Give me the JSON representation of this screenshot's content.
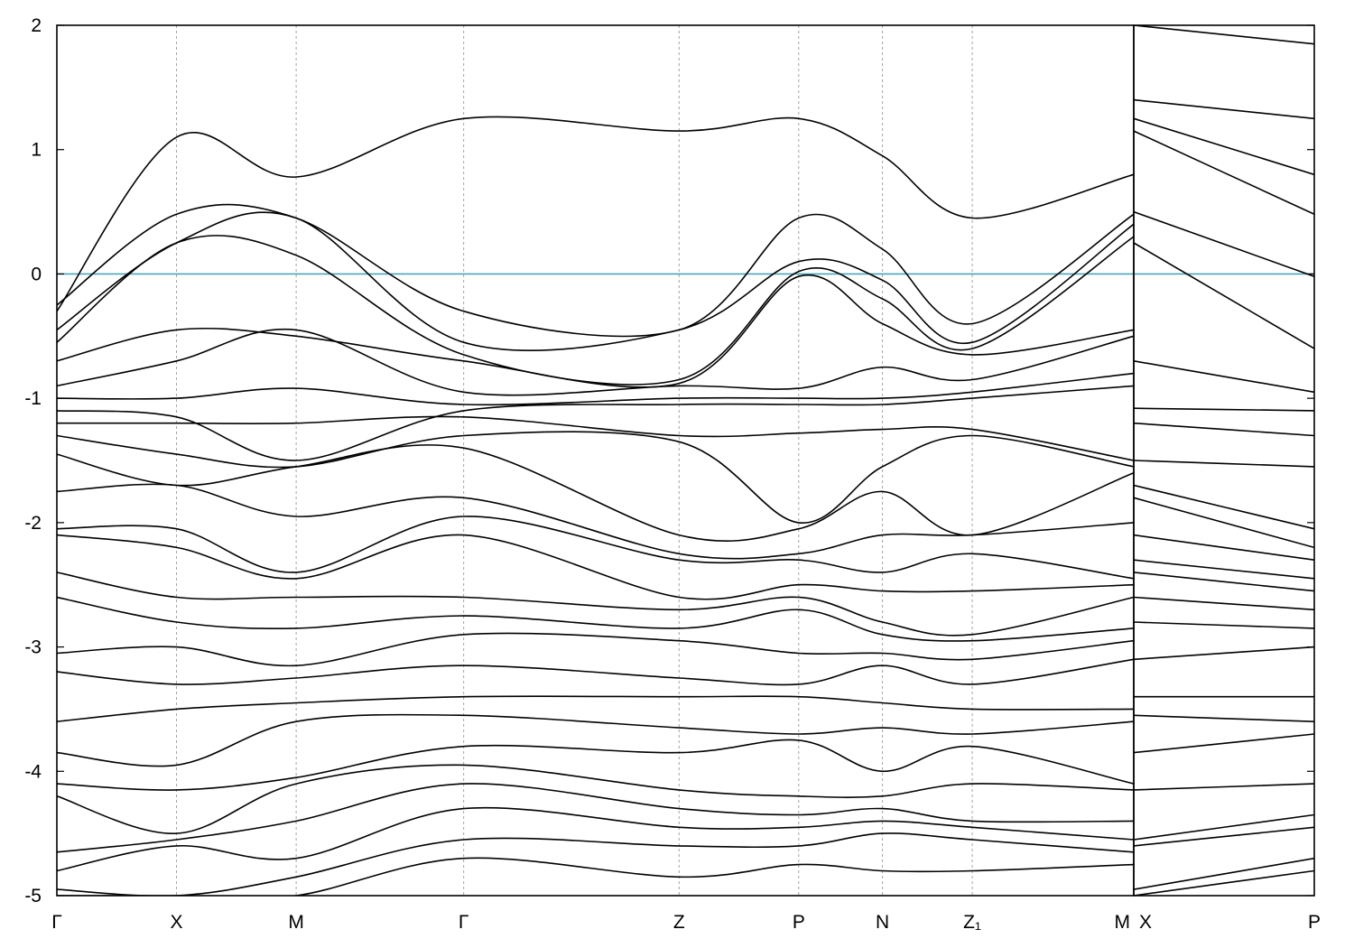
{
  "chart_data": {
    "type": "line",
    "title": "",
    "xlabel": "",
    "ylabel": "",
    "ylim": [
      -5,
      2
    ],
    "yticks": [
      "2",
      "1",
      "0",
      "-1",
      "-2",
      "-3",
      "-4",
      "-5"
    ],
    "grid": "vertical dashed lines at high-symmetry points",
    "fermi_level": 0,
    "fermi_color": "#4aa6b8",
    "line_color": "#000000",
    "segments": [
      {
        "path": [
          "Γ",
          "X",
          "M",
          "Γ",
          "Z",
          "P",
          "N",
          "Z1",
          "M"
        ],
        "x": [
          0,
          1,
          2,
          3.4,
          5.2,
          6.2,
          6.9,
          7.65,
          9
        ],
        "bands": [
          [
            -0.3,
            1.1,
            0.78,
            1.25,
            1.15,
            1.25,
            0.95,
            0.45,
            0.8
          ],
          [
            -0.25,
            0.48,
            0.45,
            -0.3,
            -0.45,
            0.45,
            0.2,
            -0.4,
            0.48
          ],
          [
            -0.45,
            0.25,
            0.45,
            -0.55,
            -0.45,
            0.1,
            -0.05,
            -0.55,
            0.4
          ],
          [
            -0.55,
            0.25,
            0.15,
            -0.65,
            -0.85,
            0.02,
            -0.2,
            -0.6,
            0.3
          ],
          [
            -0.7,
            -0.45,
            -0.5,
            -0.7,
            -0.88,
            -0.02,
            -0.4,
            -0.65,
            -0.45
          ],
          [
            -0.9,
            -0.7,
            -0.45,
            -0.95,
            -0.9,
            -0.92,
            -0.75,
            -0.85,
            -0.5
          ],
          [
            -1.0,
            -1.0,
            -0.92,
            -1.05,
            -1.0,
            -1.0,
            -1.0,
            -0.95,
            -0.8
          ],
          [
            -1.1,
            -1.15,
            -1.5,
            -1.1,
            -1.05,
            -1.05,
            -1.05,
            -1.0,
            -0.9
          ],
          [
            -1.2,
            -1.2,
            -1.2,
            -1.15,
            -1.3,
            -1.28,
            -1.25,
            -1.25,
            -1.5
          ],
          [
            -1.3,
            -1.45,
            -1.55,
            -1.3,
            -1.35,
            -2.0,
            -1.55,
            -1.3,
            -1.55
          ],
          [
            -1.45,
            -1.7,
            -1.55,
            -1.4,
            -2.1,
            -2.05,
            -1.75,
            -2.1,
            -1.6
          ],
          [
            -1.75,
            -1.7,
            -1.95,
            -1.8,
            -2.25,
            -2.25,
            -2.1,
            -2.1,
            -2.0
          ],
          [
            -2.05,
            -2.05,
            -2.4,
            -1.95,
            -2.3,
            -2.3,
            -2.4,
            -2.25,
            -2.45
          ],
          [
            -2.1,
            -2.2,
            -2.45,
            -2.1,
            -2.6,
            -2.5,
            -2.55,
            -2.55,
            -2.5
          ],
          [
            -2.4,
            -2.6,
            -2.6,
            -2.6,
            -2.7,
            -2.6,
            -2.8,
            -2.9,
            -2.6
          ],
          [
            -2.6,
            -2.8,
            -2.85,
            -2.75,
            -2.85,
            -2.7,
            -2.9,
            -2.95,
            -2.85
          ],
          [
            -3.05,
            -3.0,
            -3.15,
            -2.9,
            -2.95,
            -3.05,
            -3.05,
            -3.1,
            -2.95
          ],
          [
            -3.2,
            -3.3,
            -3.25,
            -3.15,
            -3.25,
            -3.3,
            -3.15,
            -3.3,
            -3.1
          ],
          [
            -3.6,
            -3.5,
            -3.45,
            -3.4,
            -3.4,
            -3.4,
            -3.45,
            -3.5,
            -3.5
          ],
          [
            -3.85,
            -3.95,
            -3.6,
            -3.55,
            -3.65,
            -3.7,
            -3.65,
            -3.7,
            -3.6
          ],
          [
            -4.1,
            -4.15,
            -4.05,
            -3.8,
            -3.85,
            -3.75,
            -4.0,
            -3.8,
            -4.1
          ],
          [
            -4.2,
            -4.5,
            -4.1,
            -3.95,
            -4.15,
            -4.2,
            -4.2,
            -4.1,
            -4.15
          ],
          [
            -4.65,
            -4.55,
            -4.4,
            -4.1,
            -4.3,
            -4.35,
            -4.3,
            -4.4,
            -4.4
          ],
          [
            -4.8,
            -4.6,
            -4.7,
            -4.3,
            -4.45,
            -4.45,
            -4.4,
            -4.45,
            -4.55
          ],
          [
            -4.95,
            -5.0,
            -4.85,
            -4.55,
            -4.6,
            -4.6,
            -4.5,
            -4.55,
            -4.65
          ],
          [
            -5.0,
            -5.0,
            -5.0,
            -4.7,
            -4.85,
            -4.75,
            -4.8,
            -4.8,
            -4.75
          ]
        ]
      },
      {
        "path": [
          "X",
          "P"
        ],
        "x": [
          0,
          1
        ],
        "bands": [
          [
            2.0,
            1.85
          ],
          [
            1.4,
            1.25
          ],
          [
            1.25,
            0.8
          ],
          [
            1.15,
            0.48
          ],
          [
            0.5,
            -0.02
          ],
          [
            0.25,
            -0.6
          ],
          [
            -0.7,
            -0.95
          ],
          [
            -1.08,
            -1.1
          ],
          [
            -1.2,
            -1.3
          ],
          [
            -1.5,
            -1.55
          ],
          [
            -1.7,
            -2.05
          ],
          [
            -1.8,
            -2.2
          ],
          [
            -2.1,
            -2.3
          ],
          [
            -2.3,
            -2.45
          ],
          [
            -2.4,
            -2.55
          ],
          [
            -2.6,
            -2.7
          ],
          [
            -2.8,
            -2.85
          ],
          [
            -3.1,
            -3.0
          ],
          [
            -3.4,
            -3.4
          ],
          [
            -3.55,
            -3.6
          ],
          [
            -3.85,
            -3.7
          ],
          [
            -4.15,
            -4.1
          ],
          [
            -4.55,
            -4.35
          ],
          [
            -4.6,
            -4.45
          ],
          [
            -4.95,
            -4.7
          ],
          [
            -5.0,
            -4.8
          ]
        ]
      }
    ],
    "xtick_labels": [
      "Γ",
      "X",
      "M",
      "Γ",
      "Z",
      "P",
      "N",
      "Z₁",
      "M",
      "X",
      "P"
    ]
  }
}
